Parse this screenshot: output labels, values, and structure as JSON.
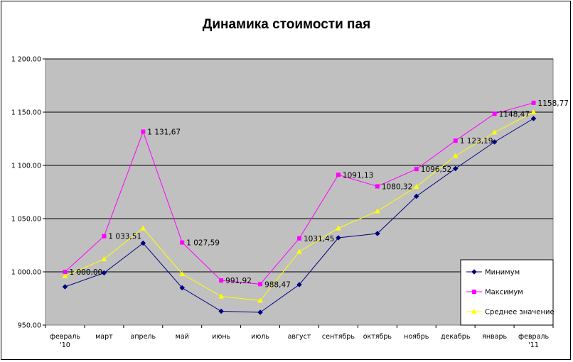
{
  "chart_data": {
    "type": "line",
    "title": "Динамика стоимости пая",
    "xlabel": "",
    "ylabel": "",
    "ylim": [
      950,
      1200
    ],
    "yticks": [
      950,
      1000,
      1050,
      1100,
      1150,
      1200
    ],
    "ytick_labels": [
      "950.00",
      "1 000.00",
      "1 050.00",
      "1 100.00",
      "1 150.00",
      "1 200.00"
    ],
    "categories": [
      [
        "февраль",
        "'10"
      ],
      [
        "март"
      ],
      [
        "апрель"
      ],
      [
        "май"
      ],
      [
        "июнь"
      ],
      [
        "июль"
      ],
      [
        "август"
      ],
      [
        "сентябрь"
      ],
      [
        "октябрь"
      ],
      [
        "ноябрь"
      ],
      [
        "декабрь"
      ],
      [
        "январь"
      ],
      [
        "февраль",
        "'11"
      ]
    ],
    "grid": true,
    "legend_position": "bottom-right",
    "series": [
      {
        "name": "Минимум",
        "color": "#000080",
        "marker": "diamond",
        "values": [
          986,
          999,
          1027,
          985,
          963,
          962,
          988,
          1032,
          1036,
          1071,
          1097,
          1122,
          1144
        ]
      },
      {
        "name": "Максимум",
        "color": "#ff00ff",
        "marker": "square",
        "values": [
          1000.0,
          1033.51,
          1131.67,
          1027.59,
          991.92,
          988.47,
          1031.45,
          1091.13,
          1080.32,
          1096.52,
          1123.19,
          1148.47,
          1158.77
        ],
        "labels": [
          "1 000,00",
          "1 033,51",
          "1 131,67",
          "1 027,59",
          "991,92",
          "988,47",
          "1031,45",
          "1091,13",
          "1080,32",
          "1096,52",
          "1 123,19",
          "1148,47",
          "1158,77"
        ]
      },
      {
        "name": "Среднее значение",
        "color": "#ffff00",
        "marker": "triangle",
        "values": [
          996,
          1012,
          1041,
          998,
          977,
          973,
          1019,
          1041,
          1057,
          1080,
          1109,
          1131,
          1150
        ]
      }
    ]
  }
}
